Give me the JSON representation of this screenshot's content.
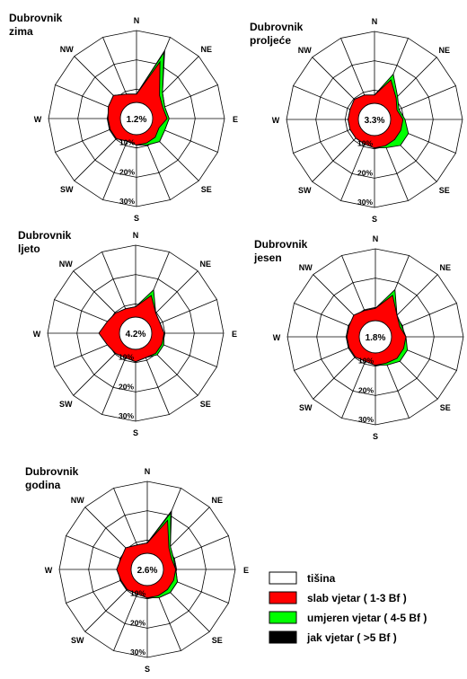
{
  "legend": {
    "items": [
      {
        "label": "tišina",
        "color": "#ffffff"
      },
      {
        "label": "slab vjetar ( 1-3 Bf )",
        "color": "#ff0000"
      },
      {
        "label": "umjeren vjetar ( 4-5 Bf )",
        "color": "#00ff00"
      },
      {
        "label": "jak vjetar ( >5 Bf )",
        "color": "#000000"
      }
    ]
  },
  "chart_data": [
    {
      "type": "radar",
      "title_line1": "Dubrovnik",
      "title_line2": "zima",
      "calm_label": "1.2%",
      "directions": [
        "N",
        "NE",
        "E",
        "SE",
        "S",
        "SW",
        "W",
        "NW"
      ],
      "ring_labels": [
        "10%",
        "20%",
        "30%"
      ],
      "series": [
        {
          "name": "slab vjetar ( 1-3 Bf )",
          "color": "#ff0000",
          "values": [
            4,
            22,
            8,
            6,
            7,
            4,
            5,
            5,
            5,
            4,
            6,
            6,
            6,
            7,
            8,
            5
          ]
        },
        {
          "name": "umjeren vjetar ( 4-5 Bf )",
          "color": "#00ff00",
          "values": [
            0,
            5,
            2,
            1,
            1,
            3,
            3,
            1,
            0,
            0,
            0,
            0,
            0,
            0,
            0,
            0
          ]
        },
        {
          "name": "jak vjetar ( >5 Bf )",
          "color": "#000000",
          "values": [
            0,
            1,
            0,
            0,
            0,
            0,
            0,
            0,
            0,
            0,
            0,
            0,
            0,
            0,
            0,
            0
          ]
        }
      ]
    },
    {
      "type": "radar",
      "title_line1": "Dubrovnik",
      "title_line2": "proljeće",
      "calm_label": "3.3%",
      "directions": [
        "N",
        "NE",
        "E",
        "SE",
        "S",
        "SW",
        "W",
        "NW"
      ],
      "ring_labels": [
        "10%",
        "20%",
        "30%"
      ],
      "series": [
        {
          "name": "slab vjetar ( 1-3 Bf )",
          "color": "#ff0000",
          "values": [
            4,
            13,
            7,
            4,
            6,
            6,
            6,
            6,
            6,
            5,
            5,
            5,
            5,
            5,
            6,
            5
          ]
        },
        {
          "name": "umjeren vjetar ( 4-5 Bf )",
          "color": "#00ff00",
          "values": [
            0,
            3,
            1,
            1,
            1,
            4,
            4,
            1,
            0,
            0,
            0,
            0,
            0,
            0,
            0,
            0
          ]
        },
        {
          "name": "jak vjetar ( >5 Bf )",
          "color": "#000000",
          "values": [
            0,
            0,
            0,
            0,
            0,
            0,
            0,
            0,
            0,
            0,
            0,
            0,
            0,
            0,
            0,
            0
          ]
        }
      ]
    },
    {
      "type": "radar",
      "title_line1": "Dubrovnik",
      "title_line2": "ljeto",
      "calm_label": "4.2%",
      "directions": [
        "N",
        "NE",
        "E",
        "SE",
        "S",
        "SW",
        "W",
        "NW"
      ],
      "ring_labels": [
        "10%",
        "20%",
        "30%"
      ],
      "series": [
        {
          "name": "slab vjetar ( 1-3 Bf )",
          "color": "#ff0000",
          "values": [
            5,
            12,
            6,
            5,
            6,
            6,
            6,
            5,
            6,
            5,
            6,
            7,
            10,
            7,
            6,
            5
          ]
        },
        {
          "name": "umjeren vjetar ( 4-5 Bf )",
          "color": "#00ff00",
          "values": [
            0,
            3,
            0,
            0,
            0,
            1,
            1,
            0,
            0,
            0,
            0,
            0,
            0,
            0,
            0,
            0
          ]
        },
        {
          "name": "jak vjetar ( >5 Bf )",
          "color": "#000000",
          "values": [
            0,
            0,
            0,
            0,
            0,
            0,
            0,
            0,
            0,
            0,
            0,
            0,
            0,
            0,
            0,
            0
          ]
        }
      ]
    },
    {
      "type": "radar",
      "title_line1": "Dubrovnik",
      "title_line2": "jesen",
      "calm_label": "1.8%",
      "directions": [
        "N",
        "NE",
        "E",
        "SE",
        "S",
        "SW",
        "W",
        "NW"
      ],
      "ring_labels": [
        "10%",
        "20%",
        "30%"
      ],
      "series": [
        {
          "name": "slab vjetar ( 1-3 Bf )",
          "color": "#ff0000",
          "values": [
            6,
            14,
            7,
            5,
            7,
            7,
            7,
            6,
            6,
            5,
            6,
            6,
            6,
            6,
            7,
            6
          ]
        },
        {
          "name": "umjeren vjetar ( 4-5 Bf )",
          "color": "#00ff00",
          "values": [
            0,
            3,
            0,
            1,
            0,
            2,
            2,
            1,
            0,
            0,
            0,
            0,
            0,
            0,
            0,
            0
          ]
        },
        {
          "name": "jak vjetar ( >5 Bf )",
          "color": "#000000",
          "values": [
            0,
            0,
            0,
            0,
            0,
            0,
            0,
            0,
            0,
            0,
            0,
            0,
            0,
            0,
            0,
            0
          ]
        }
      ]
    },
    {
      "type": "radar",
      "title_line1": "Dubrovnik",
      "title_line2": "godina",
      "calm_label": "2.6%",
      "directions": [
        "N",
        "NE",
        "E",
        "SE",
        "S",
        "SW",
        "W",
        "NW"
      ],
      "ring_labels": [
        "10%",
        "20%",
        "30%"
      ],
      "series": [
        {
          "name": "slab vjetar ( 1-3 Bf )",
          "color": "#ff0000",
          "values": [
            5,
            18,
            7,
            5,
            6,
            6,
            6,
            6,
            6,
            5,
            6,
            6,
            7,
            6,
            7,
            5
          ]
        },
        {
          "name": "umjeren vjetar ( 4-5 Bf )",
          "color": "#00ff00",
          "values": [
            0,
            4,
            1,
            1,
            0,
            2,
            2,
            1,
            0,
            0,
            0,
            0,
            0,
            0,
            0,
            0
          ]
        },
        {
          "name": "jak vjetar ( >5 Bf )",
          "color": "#000000",
          "values": [
            0,
            1,
            0,
            0,
            0,
            0,
            0,
            0,
            0,
            0,
            0,
            0,
            0,
            0,
            0,
            0
          ]
        }
      ]
    }
  ]
}
